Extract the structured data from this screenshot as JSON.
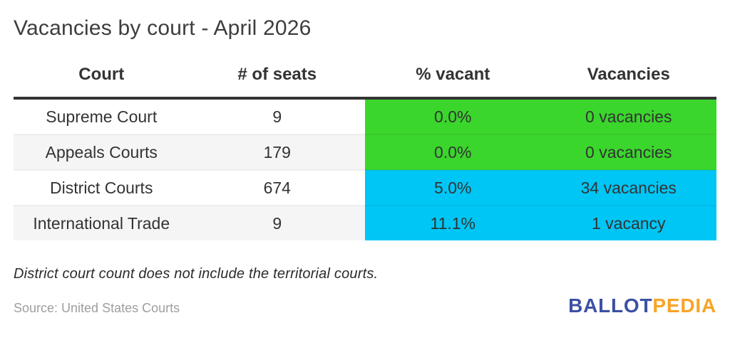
{
  "title": "Vacancies by court - April 2026",
  "table": {
    "columns": [
      "Court",
      "# of seats",
      "% vacant",
      "Vacancies"
    ],
    "rows": [
      {
        "court": "Supreme Court",
        "seats": "9",
        "pct_vacant": "0.0%",
        "vacancies": "0 vacancies",
        "status": "green"
      },
      {
        "court": "Appeals Courts",
        "seats": "179",
        "pct_vacant": "0.0%",
        "vacancies": "0 vacancies",
        "status": "green"
      },
      {
        "court": "District Courts",
        "seats": "674",
        "pct_vacant": "5.0%",
        "vacancies": "34 vacancies",
        "status": "blue"
      },
      {
        "court": "International Trade",
        "seats": "9",
        "pct_vacant": "11.1%",
        "vacancies": "1 vacancy",
        "status": "blue"
      }
    ]
  },
  "chart_data": {
    "type": "table",
    "title": "Vacancies by court - April 2026",
    "columns": [
      "Court",
      "# of seats",
      "% vacant",
      "Vacancies"
    ],
    "rows": [
      [
        "Supreme Court",
        9,
        "0.0%",
        "0 vacancies"
      ],
      [
        "Appeals Courts",
        179,
        "0.0%",
        "0 vacancies"
      ],
      [
        "District Courts",
        674,
        "5.0%",
        "34 vacancies"
      ],
      [
        "International Trade",
        9,
        "11.1%",
        "1 vacancy"
      ]
    ],
    "numeric": {
      "seats": [
        9,
        179,
        674,
        9
      ],
      "pct_vacant": [
        0.0,
        0.0,
        5.0,
        11.1
      ],
      "vacancy_counts": [
        0,
        0,
        34,
        1
      ]
    },
    "highlight_rule": "green = no vacancies, cyan = has vacancies; applied to '% vacant' and 'Vacancies' columns"
  },
  "colors": {
    "green": "#3ad62c",
    "blue": "#00c6f5",
    "stripe": "#f5f5f5",
    "logo_blue": "#3c50a4",
    "logo_orange": "#f7a428"
  },
  "footnote": "District court count does not include the territorial courts.",
  "source": "Source: United States Courts",
  "logo": {
    "part1": "BALLOT",
    "part2": "PEDIA"
  }
}
